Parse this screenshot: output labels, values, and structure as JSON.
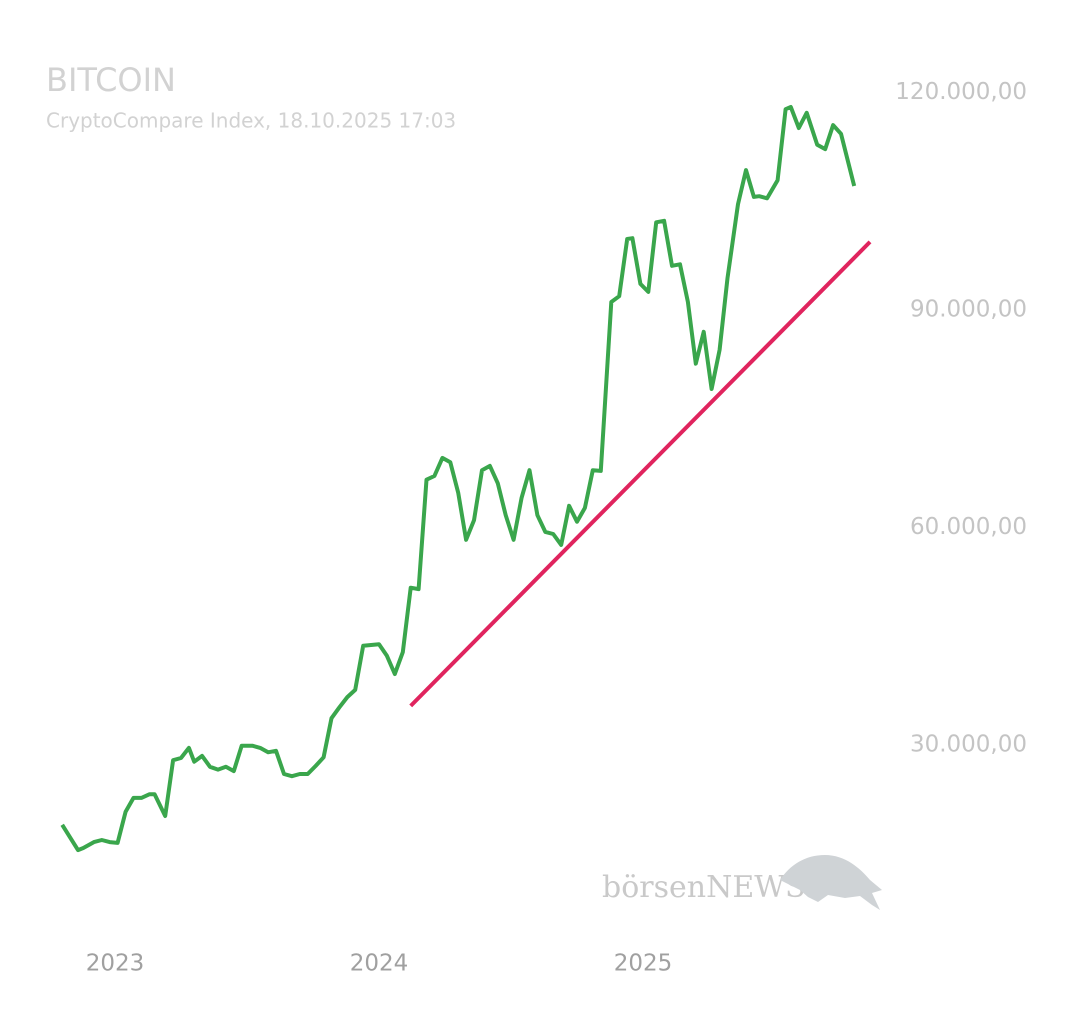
{
  "chart_data": {
    "type": "line",
    "title": "BITCOIN",
    "subtitle": "CryptoCompare Index, 18.10.2025 17:03",
    "watermark": "börsenNEWS",
    "grid": false,
    "xlim": [
      2022.7,
      2026
    ],
    "xticks": [
      2023,
      2024,
      2025
    ],
    "ylim": [
      10000,
      125000
    ],
    "yticks": [
      {
        "value": 30000,
        "label": "30.000,00"
      },
      {
        "value": 60000,
        "label": "60.000,00"
      },
      {
        "value": 90000,
        "label": "90.000,00"
      },
      {
        "value": 120000,
        "label": "120.000,00"
      }
    ],
    "series": [
      {
        "color": "#3aa64c",
        "x": [
          2022.8,
          2022.86,
          2022.88,
          2022.92,
          2022.95,
          2022.98,
          2023.01,
          2023.04,
          2023.07,
          2023.1,
          2023.13,
          2023.15,
          2023.19,
          2023.22,
          2023.25,
          2023.28,
          2023.3,
          2023.33,
          2023.36,
          2023.39,
          2023.42,
          2023.45,
          2023.48,
          2023.52,
          2023.55,
          2023.58,
          2023.61,
          2023.64,
          2023.67,
          2023.7,
          2023.73,
          2023.76,
          2023.79,
          2023.82,
          2023.85,
          2023.88,
          2023.91,
          2023.94,
          2023.97,
          2024.0,
          2024.03,
          2024.06,
          2024.09,
          2024.12,
          2024.15,
          2024.18,
          2024.21,
          2024.24,
          2024.27,
          2024.3,
          2024.33,
          2024.36,
          2024.39,
          2024.42,
          2024.45,
          2024.48,
          2024.51,
          2024.54,
          2024.57,
          2024.6,
          2024.63,
          2024.66,
          2024.69,
          2024.72,
          2024.75,
          2024.78,
          2024.81,
          2024.84,
          2024.88,
          2024.91,
          2024.94,
          2024.96,
          2024.99,
          2025.02,
          2025.05,
          2025.08,
          2025.11,
          2025.14,
          2025.17,
          2025.2,
          2025.23,
          2025.26,
          2025.29,
          2025.32,
          2025.36,
          2025.39,
          2025.42,
          2025.44,
          2025.47,
          2025.51,
          2025.54,
          2025.56,
          2025.59,
          2025.62,
          2025.66,
          2025.69,
          2025.72,
          2025.75,
          2025.8
        ],
        "values": [
          19000,
          15500,
          15800,
          16600,
          16900,
          16600,
          16500,
          20800,
          22700,
          22700,
          23200,
          23200,
          20200,
          27900,
          28200,
          29600,
          27700,
          28500,
          27000,
          26600,
          27000,
          26400,
          29900,
          29900,
          29600,
          29000,
          29200,
          26000,
          25700,
          26000,
          26000,
          27100,
          28300,
          33700,
          35200,
          36600,
          37600,
          43700,
          43800,
          43900,
          42300,
          39800,
          42800,
          51700,
          51500,
          66600,
          67100,
          69600,
          69000,
          64800,
          58300,
          61000,
          67900,
          68500,
          66100,
          61700,
          58300,
          64100,
          67900,
          61700,
          59400,
          59100,
          57600,
          63000,
          60800,
          62700,
          67900,
          67800,
          91100,
          91900,
          99800,
          99900,
          93600,
          92500,
          102100,
          102300,
          96100,
          96300,
          91100,
          82600,
          87000,
          79100,
          84500,
          94400,
          104600,
          109300,
          105600,
          105700,
          105400,
          107900,
          117700,
          118000,
          115100,
          117200,
          112800,
          112200,
          115500,
          114300,
          107100
        ]
      },
      {
        "color": "#e0245e",
        "x": [
          2024.12,
          2025.86
        ],
        "values": [
          35400,
          99400
        ]
      }
    ]
  }
}
